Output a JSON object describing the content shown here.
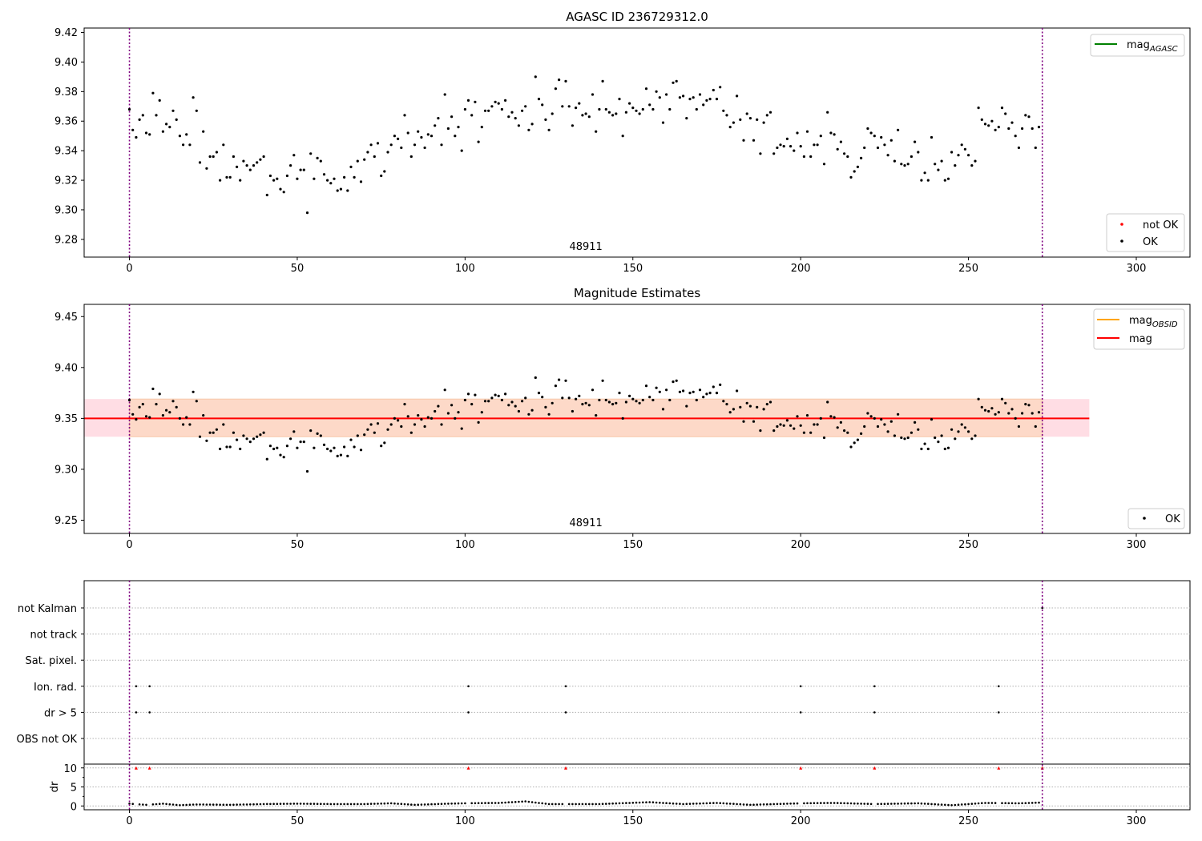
{
  "chart_data": [
    {
      "type": "scatter",
      "title": "AGASC ID 236729312.0",
      "annotation": "48911",
      "xlim": [
        -13.5,
        316
      ],
      "ylim": [
        9.268,
        9.423
      ],
      "xticks": [
        0,
        50,
        100,
        150,
        200,
        250,
        300
      ],
      "yticks": [
        9.28,
        9.3,
        9.32,
        9.34,
        9.36,
        9.38,
        9.4,
        9.42
      ],
      "ytick_decimals": 2,
      "vlines": [
        0,
        272
      ],
      "legend_lines": [
        {
          "label": "mag",
          "sub": "AGASC",
          "color": "#008000"
        }
      ],
      "legend_markers": [
        {
          "label": "not OK",
          "color": "#ff0000"
        },
        {
          "label": "OK",
          "color": "#000000"
        }
      ],
      "series": [
        {
          "name": "OK",
          "color": "#000000",
          "ref": "mag_values"
        }
      ]
    },
    {
      "type": "scatter",
      "title": "Magnitude Estimates",
      "annotation": "48911",
      "xlim": [
        -13.5,
        316
      ],
      "ylim": [
        9.237,
        9.462
      ],
      "xticks": [
        0,
        50,
        100,
        150,
        200,
        250,
        300
      ],
      "yticks": [
        9.25,
        9.3,
        9.35,
        9.4,
        9.45
      ],
      "ytick_decimals": 2,
      "vlines": [
        0,
        272
      ],
      "mean_mag": 9.35,
      "band_outer": {
        "x": [
          -13.5,
          286
        ],
        "y": [
          9.332,
          9.369
        ],
        "color": "#ffdde4"
      },
      "band_inner": {
        "x": [
          0,
          272
        ],
        "y": [
          9.332,
          9.369
        ],
        "color": "#fdd9c8"
      },
      "legend_lines": [
        {
          "label": "mag",
          "sub": "OBSID",
          "color": "#ffa500"
        },
        {
          "label": "mag",
          "sub": "",
          "color": "#ff0000"
        }
      ],
      "legend_markers": [
        {
          "label": "OK",
          "color": "#000000"
        }
      ],
      "series": [
        {
          "name": "OK",
          "color": "#000000",
          "ref": "mag_values"
        }
      ]
    },
    {
      "type": "scatter",
      "xlim": [
        -13.5,
        316
      ],
      "xticks": [
        0,
        50,
        100,
        150,
        200,
        250,
        300
      ],
      "vlines": [
        0,
        272
      ],
      "flag_categories": [
        "not Kalman",
        "not track",
        "Sat. pixel.",
        "Ion. rad.",
        "dr > 5",
        "OBS not OK"
      ],
      "flags": {
        "Ion. rad.": [
          2,
          6,
          101,
          130,
          200,
          222,
          259
        ],
        "dr > 5": [
          2,
          6,
          101,
          130,
          200,
          222,
          259
        ],
        "not Kalman": [
          272
        ]
      },
      "dr_ylabel": "dr",
      "dr_yticks": [
        0,
        5,
        10
      ],
      "dr_ylim": [
        -1,
        11
      ],
      "dr_clipped_x": [
        2,
        6,
        101,
        130,
        200,
        222,
        259,
        272
      ],
      "dr_clipped_value": 10,
      "dr_clipped_color": "#ff0000",
      "dr_keypoints": [
        [
          0,
          0.6
        ],
        [
          5,
          0.3
        ],
        [
          10,
          0.6
        ],
        [
          15,
          0.2
        ],
        [
          20,
          0.4
        ],
        [
          30,
          0.3
        ],
        [
          40,
          0.5
        ],
        [
          50,
          0.6
        ],
        [
          60,
          0.5
        ],
        [
          70,
          0.5
        ],
        [
          78,
          0.7
        ],
        [
          85,
          0.3
        ],
        [
          95,
          0.6
        ],
        [
          100,
          0.7
        ],
        [
          110,
          0.8
        ],
        [
          118,
          1.2
        ],
        [
          125,
          0.5
        ],
        [
          140,
          0.5
        ],
        [
          155,
          1.0
        ],
        [
          165,
          0.5
        ],
        [
          175,
          0.8
        ],
        [
          185,
          0.3
        ],
        [
          200,
          0.7
        ],
        [
          210,
          0.8
        ],
        [
          222,
          0.5
        ],
        [
          235,
          0.7
        ],
        [
          245,
          0.2
        ],
        [
          255,
          0.8
        ],
        [
          265,
          0.7
        ],
        [
          272,
          0.9
        ]
      ]
    }
  ],
  "mag_values": [
    9.368,
    9.354,
    9.349,
    9.361,
    9.364,
    9.352,
    9.351,
    9.379,
    9.364,
    9.374,
    9.353,
    9.358,
    9.356,
    9.367,
    9.361,
    9.35,
    9.344,
    9.351,
    9.344,
    9.376,
    9.367,
    9.332,
    9.353,
    9.328,
    9.336,
    9.336,
    9.339,
    9.32,
    9.344,
    9.322,
    9.322,
    9.336,
    9.329,
    9.32,
    9.333,
    9.33,
    9.327,
    9.33,
    9.332,
    9.334,
    9.336,
    9.31,
    9.323,
    9.32,
    9.321,
    9.314,
    9.312,
    9.323,
    9.33,
    9.337,
    9.321,
    9.327,
    9.327,
    9.298,
    9.338,
    9.321,
    9.335,
    9.333,
    9.324,
    9.32,
    9.318,
    9.321,
    9.313,
    9.314,
    9.322,
    9.313,
    9.329,
    9.322,
    9.333,
    9.319,
    9.334,
    9.339,
    9.344,
    9.336,
    9.345,
    9.323,
    9.326,
    9.339,
    9.344,
    9.35,
    9.348,
    9.342,
    9.364,
    9.352,
    9.336,
    9.344,
    9.353,
    9.349,
    9.342,
    9.351,
    9.35,
    9.357,
    9.362,
    9.344,
    9.378,
    9.355,
    9.363,
    9.35,
    9.356,
    9.34,
    9.368,
    9.374,
    9.364,
    9.373,
    9.346,
    9.356,
    9.367,
    9.367,
    9.37,
    9.373,
    9.372,
    9.368,
    9.374,
    9.363,
    9.366,
    9.362,
    9.357,
    9.367,
    9.37,
    9.354,
    9.358,
    9.39,
    9.375,
    9.371,
    9.361,
    9.354,
    9.365,
    9.382,
    9.388,
    9.37,
    9.387,
    9.37,
    9.357,
    9.369,
    9.372,
    9.364,
    9.365,
    9.363,
    9.378,
    9.353,
    9.368,
    9.387,
    9.368,
    9.366,
    9.364,
    9.365,
    9.375,
    9.35,
    9.366,
    9.372,
    9.369,
    9.367,
    9.365,
    9.368,
    9.382,
    9.371,
    9.368,
    9.38,
    9.376,
    9.359,
    9.378,
    9.368,
    9.386,
    9.387,
    9.376,
    9.377,
    9.362,
    9.375,
    9.376,
    9.368,
    9.378,
    9.371,
    9.374,
    9.375,
    9.381,
    9.375,
    9.383,
    9.367,
    9.364,
    9.356,
    9.359,
    9.377,
    9.361,
    9.347,
    9.365,
    9.362,
    9.347,
    9.361,
    9.338,
    9.359,
    9.364,
    9.366,
    9.338,
    9.342,
    9.344,
    9.343,
    9.348,
    9.343,
    9.34,
    9.352,
    9.343,
    9.336,
    9.353,
    9.336,
    9.344,
    9.344,
    9.35,
    9.331,
    9.366,
    9.352,
    9.351,
    9.341,
    9.346,
    9.338,
    9.336,
    9.322,
    9.326,
    9.329,
    9.335,
    9.342,
    9.355,
    9.352,
    9.35,
    9.342,
    9.349,
    9.344,
    9.337,
    9.347,
    9.333,
    9.354,
    9.331,
    9.33,
    9.331,
    9.336,
    9.346,
    9.339,
    9.32,
    9.325,
    9.32,
    9.349,
    9.331,
    9.327,
    9.333,
    9.32,
    9.321,
    9.339,
    9.33,
    9.337,
    9.344,
    9.341,
    9.337,
    9.33,
    9.333,
    9.369,
    9.361,
    9.358,
    9.357,
    9.36,
    9.354,
    9.356,
    9.369,
    9.365,
    9.355,
    9.359,
    9.35,
    9.342,
    9.355,
    9.364,
    9.363,
    9.355,
    9.342,
    9.356
  ]
}
